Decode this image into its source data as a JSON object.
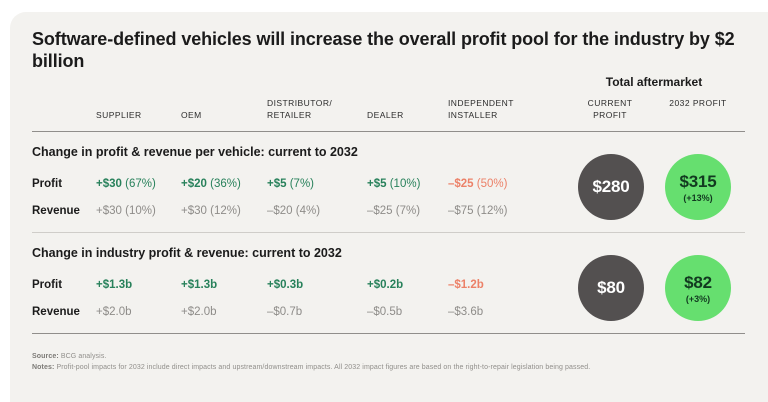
{
  "title": "Software-defined vehicles will increase the overall profit pool for the industry by $2 billion",
  "header": {
    "aftermarket_title": "Total aftermarket",
    "columns": [
      "SUPPLIER",
      "OEM",
      "DISTRIBUTOR/ RETAILER",
      "DEALER",
      "INDEPENDENT INSTALLER"
    ],
    "current_label": "CURRENT PROFIT",
    "label_2032": "2032 PROFIT"
  },
  "colors": {
    "positive": "#28815b",
    "negative": "#ec8168",
    "muted": "#8e8c89",
    "dark_circle": "#535050",
    "green_circle": "#66df6f"
  },
  "sections": [
    {
      "title": "Change in profit & revenue per vehicle: current to 2032",
      "profit_label": "Profit",
      "revenue_label": "Revenue",
      "profit": [
        {
          "amount": "+$30",
          "pct": "(67%)",
          "tone": "positive"
        },
        {
          "amount": "+$20",
          "pct": "(36%)",
          "tone": "positive"
        },
        {
          "amount": "+$5",
          "pct": "(7%)",
          "tone": "positive"
        },
        {
          "amount": "+$5",
          "pct": "(10%)",
          "tone": "positive"
        },
        {
          "amount": "–$25",
          "pct": "(50%)",
          "tone": "negative"
        }
      ],
      "revenue": [
        {
          "amount": "+$30",
          "pct": "(10%)",
          "tone": "muted"
        },
        {
          "amount": "+$30",
          "pct": "(12%)",
          "tone": "muted"
        },
        {
          "amount": "–$20",
          "pct": "(4%)",
          "tone": "muted"
        },
        {
          "amount": "–$25",
          "pct": "(7%)",
          "tone": "muted"
        },
        {
          "amount": "–$75",
          "pct": "(12%)",
          "tone": "muted"
        }
      ],
      "circles": {
        "current": "$280",
        "future": "$315",
        "change": "(+13%)"
      }
    },
    {
      "title": "Change in industry profit & revenue: current to 2032",
      "profit_label": "Profit",
      "revenue_label": "Revenue",
      "profit": [
        {
          "amount": "+$1.3b",
          "pct": "",
          "tone": "positive"
        },
        {
          "amount": "+$1.3b",
          "pct": "",
          "tone": "positive"
        },
        {
          "amount": "+$0.3b",
          "pct": "",
          "tone": "positive"
        },
        {
          "amount": "+$0.2b",
          "pct": "",
          "tone": "positive"
        },
        {
          "amount": "–$1.2b",
          "pct": "",
          "tone": "negative"
        }
      ],
      "revenue": [
        {
          "amount": "+$2.0b",
          "pct": "",
          "tone": "muted"
        },
        {
          "amount": "+$2.0b",
          "pct": "",
          "tone": "muted"
        },
        {
          "amount": "–$0.7b",
          "pct": "",
          "tone": "muted"
        },
        {
          "amount": "–$0.5b",
          "pct": "",
          "tone": "muted"
        },
        {
          "amount": "–$3.6b",
          "pct": "",
          "tone": "muted"
        }
      ],
      "circles": {
        "current": "$80",
        "future": "$82",
        "change": "(+3%)"
      }
    }
  ],
  "footer": {
    "source_label": "Source:",
    "source": "BCG analysis.",
    "notes_label": "Notes:",
    "notes": "Profit-pool impacts for 2032 include direct impacts and upstream/downstream impacts. All 2032 impact figures are based on the right-to-repair legislation being passed."
  },
  "chart_data": {
    "type": "table",
    "title": "Software-defined vehicles will increase the overall profit pool for the industry by $2 billion",
    "columns": [
      "SUPPLIER",
      "OEM",
      "DISTRIBUTOR/RETAILER",
      "DEALER",
      "INDEPENDENT INSTALLER"
    ],
    "sections": [
      {
        "title": "Change in profit & revenue per vehicle: current to 2032",
        "rows": [
          {
            "label": "Profit",
            "values": [
              "+$30 (67%)",
              "+$20 (36%)",
              "+$5 (7%)",
              "+$5 (10%)",
              "–$25 (50%)"
            ]
          },
          {
            "label": "Revenue",
            "values": [
              "+$30 (10%)",
              "+$30 (12%)",
              "–$20 (4%)",
              "–$25 (7%)",
              "–$75 (12%)"
            ]
          }
        ],
        "total_aftermarket": {
          "current_profit": "$280",
          "profit_2032": "$315",
          "change_2032": "+13%"
        }
      },
      {
        "title": "Change in industry profit & revenue: current to 2032",
        "rows": [
          {
            "label": "Profit",
            "values": [
              "+$1.3b",
              "+$1.3b",
              "+$0.3b",
              "+$0.2b",
              "–$1.2b"
            ]
          },
          {
            "label": "Revenue",
            "values": [
              "+$2.0b",
              "+$2.0b",
              "–$0.7b",
              "–$0.5b",
              "–$3.6b"
            ]
          }
        ],
        "total_aftermarket": {
          "current_profit": "$80",
          "profit_2032": "$82",
          "change_2032": "+3%"
        }
      }
    ]
  }
}
